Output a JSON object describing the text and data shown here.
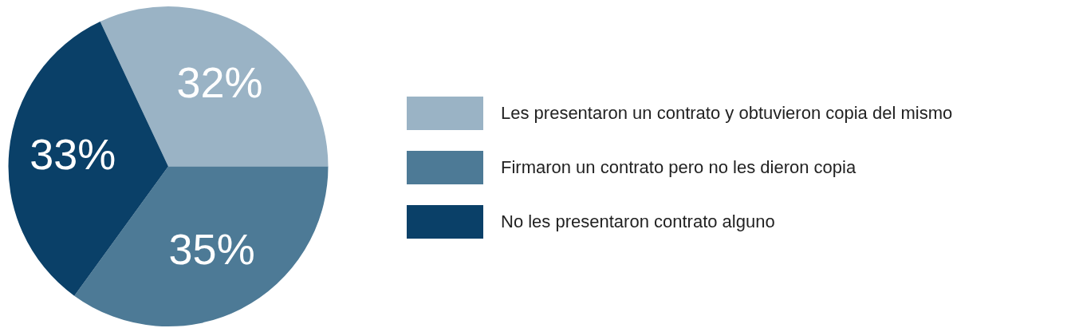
{
  "chart_data": {
    "type": "pie",
    "categories": [
      "Les presentaron un contrato y obtuvieron copia del mismo",
      "Firmaron un contrato pero no les dieron copia",
      "No les presentaron contrato alguno"
    ],
    "values": [
      32,
      35,
      33
    ],
    "colors": [
      "#9ab3c5",
      "#4d7a96",
      "#0a4068"
    ],
    "value_labels": [
      "32%",
      "35%",
      "33%"
    ],
    "legend": "right"
  }
}
